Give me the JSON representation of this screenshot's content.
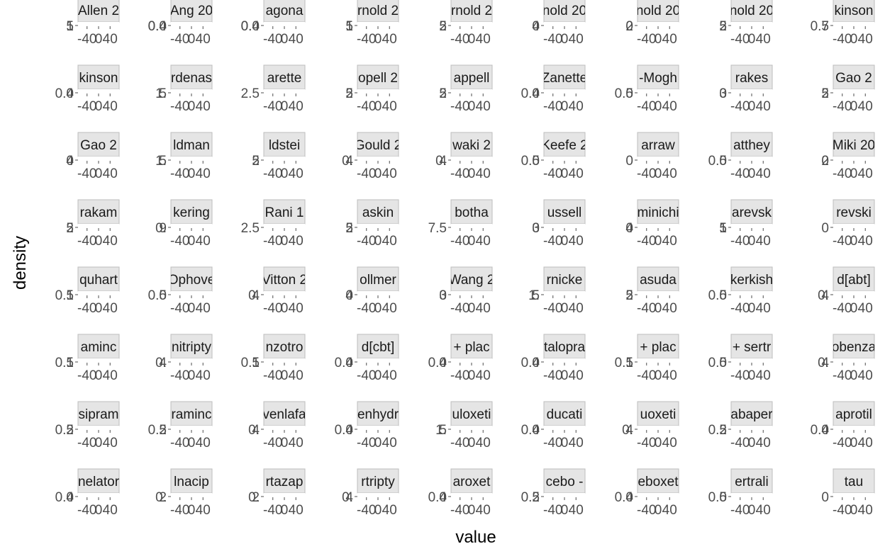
{
  "chart_data": {
    "type": "area",
    "layout": "facet-grid",
    "xlabel": "value",
    "ylabel": "density",
    "x_ticks": [
      "-40",
      "0",
      "40"
    ],
    "grid": false,
    "panels": [
      {
        "strip": "Allen 2",
        "y_ticks": [
          "1",
          "5"
        ]
      },
      {
        "strip": "Ang 20",
        "y_ticks": [
          "0.0",
          "0.4"
        ]
      },
      {
        "strip": "agona",
        "y_ticks": [
          "0.0",
          "0.4"
        ]
      },
      {
        "strip": "rnold 2",
        "y_ticks": [
          "1",
          "5"
        ]
      },
      {
        "strip": "rnold 2",
        "y_ticks": [
          "2",
          "5"
        ]
      },
      {
        "strip": "nold 20",
        "y_ticks": [
          "4",
          "0"
        ]
      },
      {
        "strip": "nold 20",
        "y_ticks": [
          "2",
          "0"
        ]
      },
      {
        "strip": "nold 20",
        "y_ticks": [
          "2",
          "5"
        ]
      },
      {
        "strip": "kinson",
        "y_ticks": [
          "0.7",
          "5"
        ]
      },
      {
        "strip": "kinson",
        "y_ticks": [
          "0.0",
          "4"
        ]
      },
      {
        "strip": "rdenas",
        "y_ticks": [
          "1.",
          "5"
        ]
      },
      {
        "strip": "arette",
        "y_ticks": [
          "2.5"
        ]
      },
      {
        "strip": "opell 2",
        "y_ticks": [
          "2",
          "5"
        ]
      },
      {
        "strip": "appell",
        "y_ticks": [
          "2",
          "5"
        ]
      },
      {
        "strip": "Zanette",
        "y_ticks": [
          "0.0",
          "4"
        ]
      },
      {
        "strip": "-Mogh",
        "y_ticks": [
          "0.0",
          "5"
        ]
      },
      {
        "strip": "rakes",
        "y_ticks": [
          "3",
          "0"
        ]
      },
      {
        "strip": "Gao 2",
        "y_ticks": [
          "2",
          "5"
        ]
      },
      {
        "strip": "Gao 2",
        "y_ticks": [
          "4",
          "0"
        ]
      },
      {
        "strip": "ldman",
        "y_ticks": [
          "1.",
          "5"
        ]
      },
      {
        "strip": "ldstei",
        "y_ticks": [
          "2",
          "5"
        ]
      },
      {
        "strip": "Gould 2",
        "y_ticks": [
          "0.",
          "4"
        ]
      },
      {
        "strip": "waki 2",
        "y_ticks": [
          "0.",
          "4"
        ]
      },
      {
        "strip": "Keefe 2",
        "y_ticks": [
          "0.0",
          "5"
        ]
      },
      {
        "strip": "arraw",
        "y_ticks": [
          "0"
        ]
      },
      {
        "strip": "atthey",
        "y_ticks": [
          "0.0",
          "5"
        ]
      },
      {
        "strip": "Miki 20",
        "y_ticks": [
          "2",
          "0"
        ]
      },
      {
        "strip": "rakam",
        "y_ticks": [
          "2",
          "5"
        ]
      },
      {
        "strip": "kering",
        "y_ticks": [
          "0.",
          "9"
        ]
      },
      {
        "strip": "Rani 1",
        "y_ticks": [
          "2.5"
        ]
      },
      {
        "strip": "askin",
        "y_ticks": [
          "2",
          "5"
        ]
      },
      {
        "strip": "botha",
        "y_ticks": [
          "7.5"
        ]
      },
      {
        "strip": "ussell",
        "y_ticks": [
          "3",
          "0"
        ]
      },
      {
        "strip": "minichi",
        "y_ticks": [
          "4",
          "0"
        ]
      },
      {
        "strip": "arevsk",
        "y_ticks": [
          "1",
          "5"
        ]
      },
      {
        "strip": "revski",
        "y_ticks": [
          "0"
        ]
      },
      {
        "strip": "quhart",
        "y_ticks": [
          "0.1",
          "5"
        ]
      },
      {
        "strip": "Ophove",
        "y_ticks": [
          "0.0",
          "5"
        ]
      },
      {
        "strip": "Vitton 2",
        "y_ticks": [
          "0.",
          "4"
        ]
      },
      {
        "strip": "ollmer",
        "y_ticks": [
          "4",
          "0"
        ]
      },
      {
        "strip": "Wang 2",
        "y_ticks": [
          "3",
          "0"
        ]
      },
      {
        "strip": "rnicke",
        "y_ticks": [
          "1.",
          "5"
        ]
      },
      {
        "strip": "asuda",
        "y_ticks": [
          "2",
          "5"
        ]
      },
      {
        "strip": "kerkish",
        "y_ticks": [
          "0.0",
          "5"
        ]
      },
      {
        "strip": "d[abt]",
        "y_ticks": [
          "0.",
          "4"
        ]
      },
      {
        "strip": "aminc",
        "y_ticks": [
          "0.1",
          "5"
        ]
      },
      {
        "strip": "nitripty",
        "y_ticks": [
          "0.",
          "4"
        ]
      },
      {
        "strip": "nzotro",
        "y_ticks": [
          "0.1",
          "5"
        ]
      },
      {
        "strip": "d[cbt]",
        "y_ticks": [
          "0.0",
          "4"
        ]
      },
      {
        "strip": "+ plac",
        "y_ticks": [
          "0.0",
          "4"
        ]
      },
      {
        "strip": "talopra",
        "y_ticks": [
          "0.0",
          "4"
        ]
      },
      {
        "strip": "+ plac",
        "y_ticks": [
          "0.1",
          "5"
        ]
      },
      {
        "strip": "+ sertr",
        "y_ticks": [
          "0.0",
          "5"
        ]
      },
      {
        "strip": "obenza",
        "y_ticks": [
          "0.",
          "4"
        ]
      },
      {
        "strip": "sipram",
        "y_ticks": [
          "0.2",
          "5"
        ]
      },
      {
        "strip": "raminc",
        "y_ticks": [
          "0.2",
          "5"
        ]
      },
      {
        "strip": "venlafa",
        "y_ticks": [
          "0.",
          "4"
        ]
      },
      {
        "strip": "enhydr",
        "y_ticks": [
          "0.0",
          "4"
        ]
      },
      {
        "strip": "uloxeti",
        "y_ticks": [
          "1.",
          "5"
        ]
      },
      {
        "strip": "ducati",
        "y_ticks": [
          "0.0",
          "4"
        ]
      },
      {
        "strip": "uoxeti",
        "y_ticks": [
          "0.",
          "4"
        ]
      },
      {
        "strip": "abaper",
        "y_ticks": [
          "0.2",
          "5"
        ]
      },
      {
        "strip": "aprotil",
        "y_ticks": [
          "0.0",
          "4"
        ]
      },
      {
        "strip": "nelator",
        "y_ticks": [
          "0.0",
          "4"
        ]
      },
      {
        "strip": "lnacip",
        "y_ticks": [
          "0.",
          "2"
        ]
      },
      {
        "strip": "rtazap",
        "y_ticks": [
          "0.",
          "2"
        ]
      },
      {
        "strip": "rtripty",
        "y_ticks": [
          "0.",
          "4"
        ]
      },
      {
        "strip": "aroxet",
        "y_ticks": [
          "0.0",
          "4"
        ]
      },
      {
        "strip": "cebo -",
        "y_ticks": [
          "0.2",
          "5"
        ]
      },
      {
        "strip": "eboxet",
        "y_ticks": [
          "0.0",
          "4"
        ]
      },
      {
        "strip": "ertrali",
        "y_ticks": [
          "0.0",
          "5"
        ]
      },
      {
        "strip": "tau",
        "y_ticks": [
          "0"
        ]
      }
    ]
  }
}
